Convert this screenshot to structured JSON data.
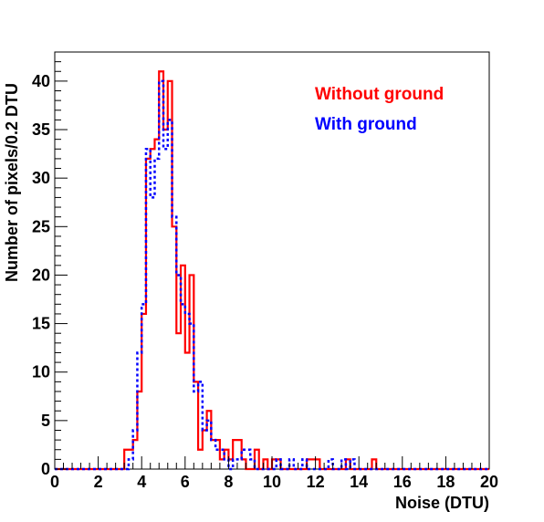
{
  "chart_data": {
    "type": "histogram",
    "xlabel": "Noise (DTU)",
    "ylabel": "Number of pixels/0.2 DTU",
    "xlim": [
      0,
      20
    ],
    "ylim": [
      0,
      43
    ],
    "bin_width": 0.2,
    "x_ticks": [
      "0",
      "2",
      "4",
      "6",
      "8",
      "10",
      "12",
      "14",
      "16",
      "18",
      "20"
    ],
    "y_ticks": [
      "0",
      "5",
      "10",
      "15",
      "20",
      "25",
      "30",
      "35",
      "40"
    ],
    "grid": false,
    "legend_position": "top-right",
    "series": [
      {
        "name": "Without ground",
        "color": "#ff0000",
        "line_style": "solid",
        "bins_from": 3.2,
        "values": [
          2,
          2,
          3,
          8,
          16,
          32,
          33,
          34,
          41,
          35,
          40,
          25,
          14,
          21,
          12,
          20,
          9,
          2,
          4,
          6,
          3,
          3,
          1,
          2,
          1,
          3,
          3,
          1,
          0,
          0,
          2,
          0,
          1,
          0,
          1,
          1,
          0,
          0,
          0,
          0,
          0,
          0,
          1,
          1,
          1,
          0,
          0,
          0,
          0,
          0,
          0,
          1,
          0,
          0,
          0,
          0,
          0,
          1
        ]
      },
      {
        "name": "With ground",
        "color": "#0000ff",
        "line_style": "dashed",
        "bins_from": 3.2,
        "values": [
          0,
          1,
          4,
          12,
          17,
          33,
          28,
          32,
          40,
          33,
          36,
          26,
          20,
          17,
          16,
          15,
          8,
          9,
          4,
          5,
          3,
          2,
          2,
          1,
          0,
          1,
          1,
          2,
          2,
          1,
          0,
          0,
          0,
          0,
          0,
          1,
          0,
          0,
          1,
          0,
          0,
          1,
          0,
          0,
          0,
          0,
          0,
          1,
          0,
          0,
          1,
          0,
          1,
          0,
          0,
          0,
          0,
          0
        ]
      }
    ]
  }
}
